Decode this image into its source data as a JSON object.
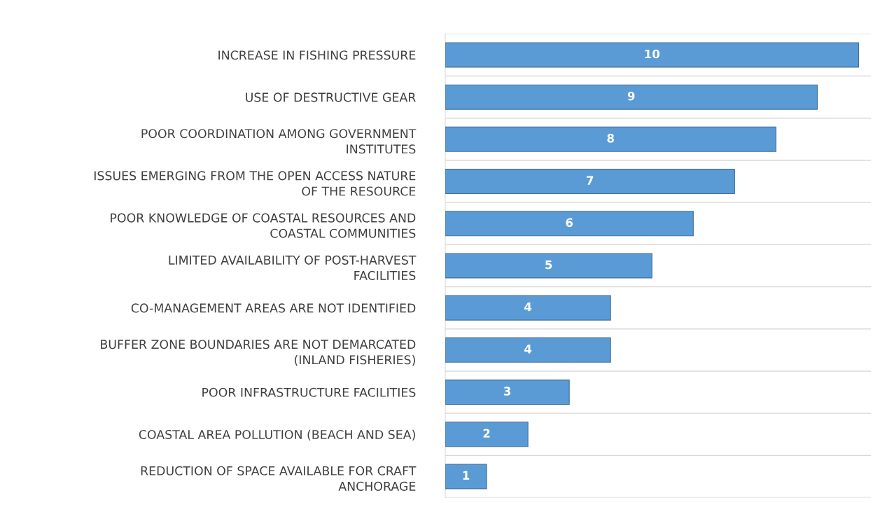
{
  "chart_data": {
    "type": "bar",
    "orientation": "horizontal",
    "categories": [
      "INCREASE IN FISHING PRESSURE",
      "USE OF DESTRUCTIVE GEAR",
      "POOR COORDINATION AMONG GOVERNMENT INSTITUTES",
      "ISSUES EMERGING FROM THE OPEN ACCESS NATURE OF THE RESOURCE",
      "POOR KNOWLEDGE OF COASTAL RESOURCES AND COASTAL COMMUNITIES",
      "LIMITED AVAILABILITY OF POST-HARVEST FACILITIES",
      "CO-MANAGEMENT AREAS ARE NOT IDENTIFIED",
      "BUFFER ZONE BOUNDARIES ARE NOT DEMARCATED (INLAND FISHERIES)",
      "POOR INFRASTRUCTURE FACILITIES",
      "COASTAL AREA POLLUTION (BEACH AND SEA)",
      "REDUCTION OF SPACE AVAILABLE FOR CRAFT ANCHORAGE"
    ],
    "values": [
      10,
      9,
      8,
      7,
      6,
      5,
      4,
      4,
      3,
      2,
      1
    ],
    "color": "#5b9bd5",
    "data_labels": true,
    "xlim": [
      0,
      10.3
    ],
    "tick_labels": "y",
    "grid": "y"
  }
}
